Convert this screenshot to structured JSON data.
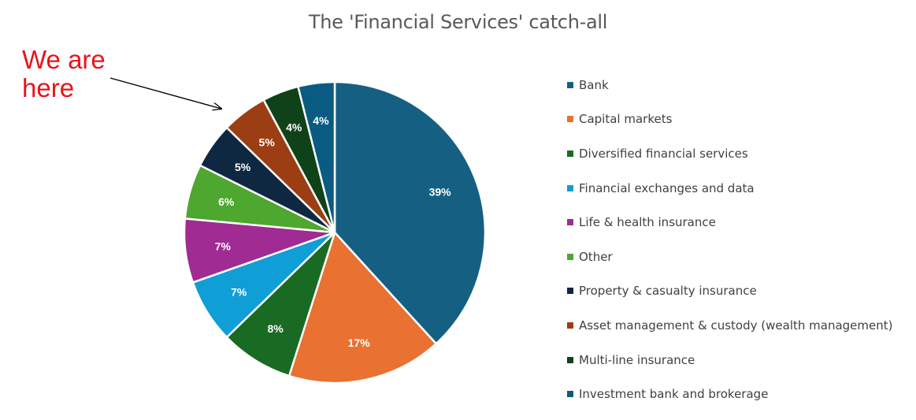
{
  "annotation": {
    "line1": "We are",
    "line2": "here"
  },
  "chart_data": {
    "type": "pie",
    "title": "The 'Financial Services' catch-all",
    "legend_position": "right",
    "categories": [
      "Bank",
      "Capital markets",
      "Diversified financial services",
      "Financial exchanges and data",
      "Life & health insurance",
      "Other",
      "Property & casualty insurance",
      "Asset management & custody (wealth management)",
      "Multi-line insurance",
      "Investment bank and brokerage"
    ],
    "values": [
      39,
      17,
      8,
      7,
      7,
      6,
      5,
      5,
      4,
      4
    ],
    "labels": [
      "39%",
      "17%",
      "8%",
      "7%",
      "7%",
      "6%",
      "5%",
      "5%",
      "4%",
      "4%"
    ],
    "colors": [
      "#156082",
      "#e97132",
      "#196b24",
      "#0f9ed5",
      "#a02b93",
      "#4ea72e",
      "#0e2841",
      "#9b3e13",
      "#0f4218",
      "#0a5b81"
    ],
    "annotated_slice": "Asset management & custody (wealth management)"
  }
}
